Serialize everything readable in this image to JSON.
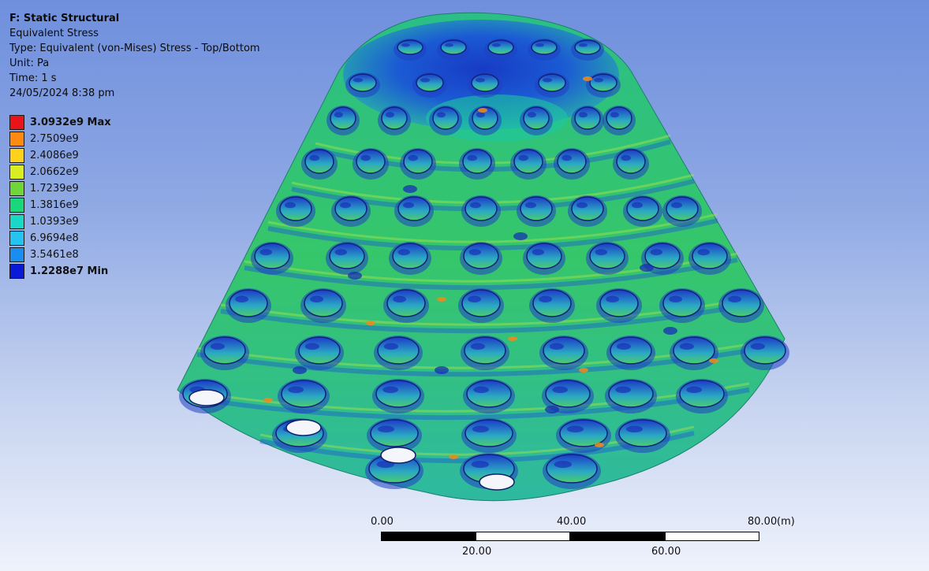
{
  "info": {
    "title": "F: Static Structural",
    "result": "Equivalent Stress",
    "type": "Type: Equivalent (von-Mises) Stress - Top/Bottom",
    "unit": "Unit: Pa",
    "time": "Time: 1 s",
    "date": "24/05/2024 8:38 pm"
  },
  "legend": {
    "items": [
      {
        "label": "3.0932e9 Max",
        "color": "#e8141a",
        "bold": true
      },
      {
        "label": "2.7509e9",
        "color": "#ff8a10",
        "bold": false
      },
      {
        "label": "2.4086e9",
        "color": "#ffd21a",
        "bold": false
      },
      {
        "label": "2.0662e9",
        "color": "#d8ee22",
        "bold": false
      },
      {
        "label": "1.7239e9",
        "color": "#6fd63a",
        "bold": false
      },
      {
        "label": "1.3816e9",
        "color": "#18d87a",
        "bold": false
      },
      {
        "label": "1.0393e9",
        "color": "#1ad8c8",
        "bold": false
      },
      {
        "label": "6.9694e8",
        "color": "#24c4ee",
        "bold": false
      },
      {
        "label": "3.5461e8",
        "color": "#1a8ef0",
        "bold": false
      },
      {
        "label": "1.2288e7 Min",
        "color": "#0a18d8",
        "bold": true
      }
    ]
  },
  "scale": {
    "top_labels": [
      "0.00",
      "40.00",
      "80.00"
    ],
    "bottom_labels": [
      "20.00",
      "60.00"
    ],
    "unit": "(m)"
  },
  "model": {
    "name": "perforated conical shell stress contour",
    "colors": {
      "green": "#3fc45c",
      "teal": "#1cc7a0",
      "blue": "#1f47d6",
      "deep_blue": "#1426b8",
      "hotspot": "#f08a1c"
    }
  }
}
